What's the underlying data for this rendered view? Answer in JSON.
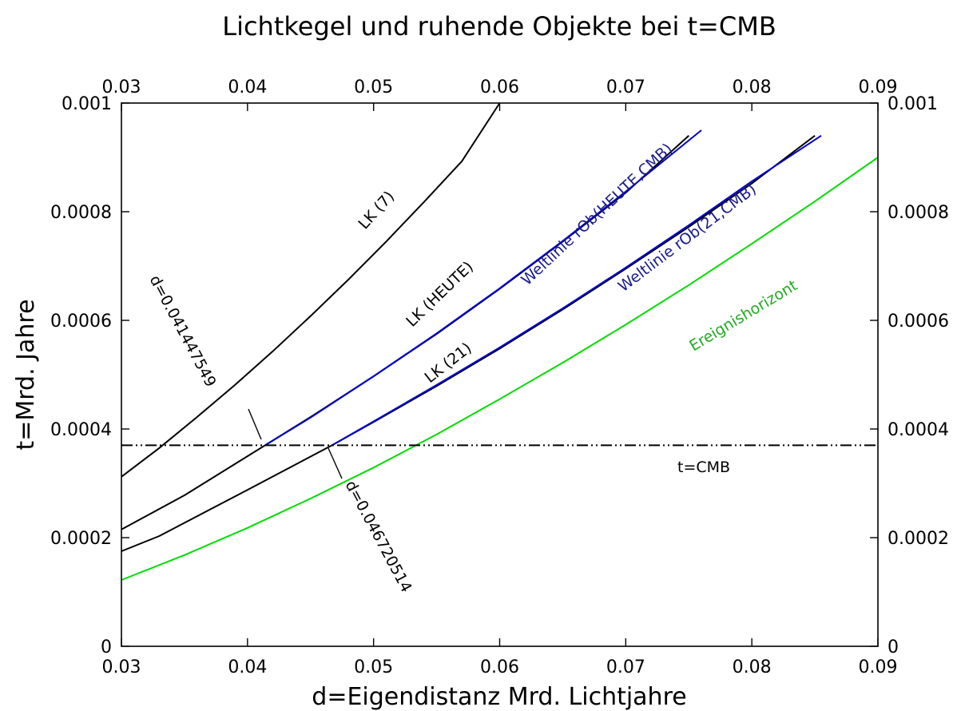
{
  "chart_data": {
    "type": "line",
    "title": "Lichtkegel und ruhende Objekte bei t=CMB",
    "xlabel": "d=Eigendistanz Mrd. Lichtjahre",
    "ylabel": "t=Mrd. Jahre",
    "xlim": [
      0.03,
      0.09
    ],
    "ylim": [
      0,
      0.001
    ],
    "x_ticks": [
      0.03,
      0.04,
      0.05,
      0.06,
      0.07,
      0.08,
      0.09
    ],
    "y_ticks": [
      0,
      0.0002,
      0.0004,
      0.0006,
      0.0008,
      0.001
    ],
    "x_tick_labels": [
      "0.03",
      "0.04",
      "0.05",
      "0.06",
      "0.07",
      "0.08",
      "0.09"
    ],
    "y_tick_labels": [
      "0",
      "0.0002",
      "0.0004",
      "0.0006",
      "0.0008",
      "0.001"
    ],
    "grid": false,
    "mirror_axes": true,
    "series": [
      {
        "color": "#000000",
        "dash": "solid",
        "x": [
          0.03,
          0.033,
          0.036,
          0.039,
          0.042,
          0.045,
          0.048,
          0.051,
          0.054,
          0.057,
          0.06
        ],
        "y": [
          0.000312,
          0.000365,
          0.000422,
          0.000481,
          0.000543,
          0.000608,
          0.000675,
          0.000745,
          0.000818,
          0.000893,
          0.001
        ]
      },
      {
        "color": "#000000",
        "dash": "solid",
        "x": [
          0.03,
          0.035,
          0.0414,
          0.045,
          0.05,
          0.055,
          0.06,
          0.065,
          0.07,
          0.075
        ],
        "y": [
          0.000215,
          0.000278,
          0.00037,
          0.000422,
          0.000497,
          0.000575,
          0.000658,
          0.000745,
          0.000835,
          0.00094
        ]
      },
      {
        "color": "#000000",
        "dash": "solid",
        "x": [
          0.03,
          0.033,
          0.04,
          0.0467,
          0.05,
          0.055,
          0.06,
          0.065,
          0.07,
          0.075,
          0.08,
          0.085
        ],
        "y": [
          0.000175,
          0.000203,
          0.000288,
          0.00037,
          0.000413,
          0.000479,
          0.000548,
          0.00062,
          0.000695,
          0.000772,
          0.000852,
          0.00094
        ]
      },
      {
        "color": "#0000cc",
        "dash": "solid",
        "x": [
          0.0414,
          0.045,
          0.05,
          0.055,
          0.06,
          0.065,
          0.07,
          0.076
        ],
        "y": [
          0.00037,
          0.000421,
          0.000497,
          0.000576,
          0.000659,
          0.000746,
          0.000837,
          0.00095
        ]
      },
      {
        "color": "#0000cc",
        "dash": "solid",
        "x": [
          0.0467,
          0.05,
          0.055,
          0.06,
          0.065,
          0.07,
          0.075,
          0.08,
          0.0855
        ],
        "y": [
          0.00037,
          0.000414,
          0.000481,
          0.00055,
          0.000622,
          0.000697,
          0.000775,
          0.000856,
          0.00094
        ]
      },
      {
        "color": "#00dd00",
        "dash": "solid",
        "x": [
          0.03,
          0.035,
          0.04,
          0.045,
          0.05,
          0.055,
          0.06,
          0.065,
          0.07,
          0.075,
          0.08,
          0.085,
          0.09
        ],
        "y": [
          0.000122,
          0.000168,
          0.000218,
          0.000272,
          0.000329,
          0.00039,
          0.000455,
          0.000522,
          0.000592,
          0.000665,
          0.000741,
          0.000819,
          0.0009
        ]
      },
      {
        "color": "#000000",
        "dash": "dash-dot-dot",
        "x": [
          0.03,
          0.09
        ],
        "y": [
          0.00037,
          0.00037
        ]
      }
    ],
    "annotations": [
      {
        "text": "LK (7)",
        "color": "#000000"
      },
      {
        "text": "LK (HEUTE)",
        "color": "#000000"
      },
      {
        "text": "LK (21)",
        "color": "#000000"
      },
      {
        "text": "Weltlinie rOb(HEUTE,CMB)",
        "color": "#1a1a8c"
      },
      {
        "text": "Weltlinie rOb(21,CMB)",
        "color": "#1a1a8c"
      },
      {
        "text": "Ereignishorizont",
        "color": "#22aa22"
      },
      {
        "text": "t=CMB",
        "color": "#000000"
      },
      {
        "text": "d=0.041447549",
        "color": "#000000"
      },
      {
        "text": "d=0.046720514",
        "color": "#000000"
      }
    ]
  }
}
